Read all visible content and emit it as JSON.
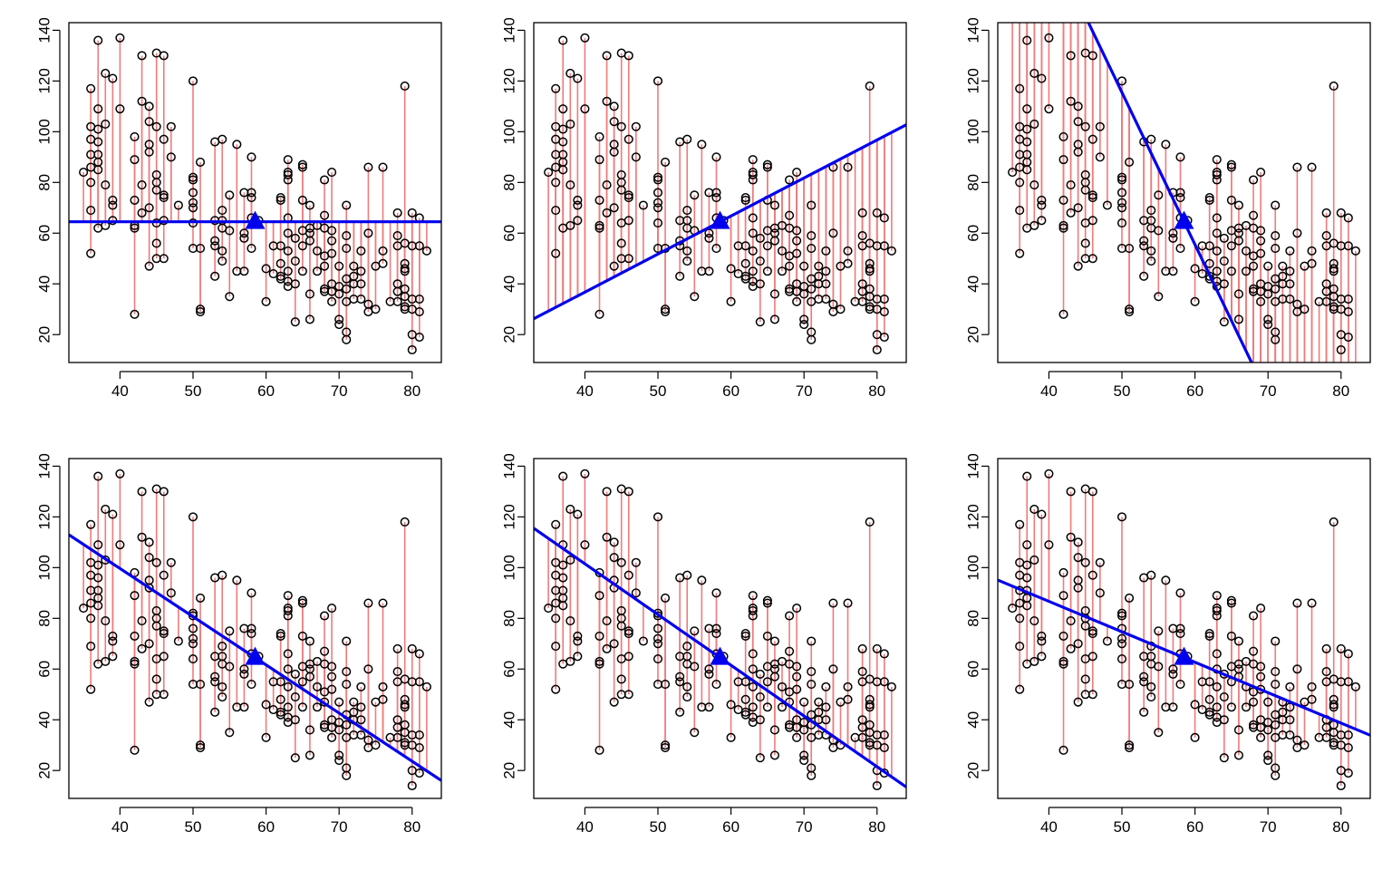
{
  "chart_data": {
    "type": "scatter",
    "layout": "2 rows x 3 columns of panels",
    "shared_axes": {
      "xlim": [
        33,
        84
      ],
      "ylim": [
        9,
        143
      ],
      "x_ticks": [
        40,
        50,
        60,
        70,
        80
      ],
      "y_ticks": [
        20,
        40,
        60,
        80,
        100,
        120,
        140
      ],
      "xlabel": "",
      "ylabel": "",
      "grid": false,
      "legend": "none"
    },
    "colors": {
      "points": "#000000",
      "residuals": "#f07b7b",
      "fit_line": "#0000ee",
      "mean_marker": "#0000ee"
    },
    "mean_point": {
      "x": 58.5,
      "y": 64.5
    },
    "points": [
      [
        35,
        84
      ],
      [
        36,
        117
      ],
      [
        36,
        52
      ],
      [
        36,
        69
      ],
      [
        36,
        80
      ],
      [
        36,
        86
      ],
      [
        36,
        91
      ],
      [
        36,
        97
      ],
      [
        36,
        102
      ],
      [
        37,
        136
      ],
      [
        37,
        62
      ],
      [
        37,
        85
      ],
      [
        37,
        88
      ],
      [
        37,
        91
      ],
      [
        37,
        96
      ],
      [
        37,
        101
      ],
      [
        37,
        109
      ],
      [
        38,
        123
      ],
      [
        38,
        103
      ],
      [
        38,
        79
      ],
      [
        38,
        63
      ],
      [
        39,
        121
      ],
      [
        39,
        73
      ],
      [
        39,
        71
      ],
      [
        39,
        65
      ],
      [
        40,
        137
      ],
      [
        40,
        109
      ],
      [
        42,
        98
      ],
      [
        42,
        89
      ],
      [
        42,
        73
      ],
      [
        42,
        63
      ],
      [
        42,
        62
      ],
      [
        42,
        28
      ],
      [
        43,
        130
      ],
      [
        43,
        112
      ],
      [
        43,
        79
      ],
      [
        43,
        68
      ],
      [
        44,
        110
      ],
      [
        44,
        104
      ],
      [
        44,
        95
      ],
      [
        44,
        92
      ],
      [
        44,
        70
      ],
      [
        44,
        47
      ],
      [
        45,
        131
      ],
      [
        45,
        102
      ],
      [
        45,
        83
      ],
      [
        45,
        80
      ],
      [
        45,
        77
      ],
      [
        45,
        64
      ],
      [
        45,
        56
      ],
      [
        45,
        50
      ],
      [
        46,
        130
      ],
      [
        46,
        97
      ],
      [
        46,
        75
      ],
      [
        46,
        74
      ],
      [
        46,
        65
      ],
      [
        46,
        50
      ],
      [
        47,
        102
      ],
      [
        47,
        90
      ],
      [
        48,
        71
      ],
      [
        50,
        120
      ],
      [
        50,
        82
      ],
      [
        50,
        81
      ],
      [
        50,
        76
      ],
      [
        50,
        72
      ],
      [
        50,
        70
      ],
      [
        50,
        64
      ],
      [
        50,
        54
      ],
      [
        51,
        88
      ],
      [
        51,
        54
      ],
      [
        51,
        30
      ],
      [
        51,
        29
      ],
      [
        53,
        96
      ],
      [
        53,
        65
      ],
      [
        53,
        57
      ],
      [
        53,
        55
      ],
      [
        53,
        43
      ],
      [
        54,
        97
      ],
      [
        54,
        69
      ],
      [
        54,
        65
      ],
      [
        54,
        62
      ],
      [
        54,
        53
      ],
      [
        54,
        49
      ],
      [
        55,
        75
      ],
      [
        55,
        61
      ],
      [
        55,
        35
      ],
      [
        56,
        95
      ],
      [
        56,
        45
      ],
      [
        57,
        76
      ],
      [
        57,
        60
      ],
      [
        57,
        58
      ],
      [
        57,
        45
      ],
      [
        58,
        90
      ],
      [
        58,
        76
      ],
      [
        58,
        74
      ],
      [
        58,
        66
      ],
      [
        58,
        54
      ],
      [
        59,
        65
      ],
      [
        60,
        46
      ],
      [
        60,
        33
      ],
      [
        61,
        55
      ],
      [
        61,
        44
      ],
      [
        62,
        74
      ],
      [
        62,
        73
      ],
      [
        62,
        55
      ],
      [
        62,
        48
      ],
      [
        62,
        43
      ],
      [
        62,
        42
      ],
      [
        63,
        89
      ],
      [
        63,
        84
      ],
      [
        63,
        83
      ],
      [
        63,
        81
      ],
      [
        63,
        66
      ],
      [
        63,
        60
      ],
      [
        63,
        53
      ],
      [
        63,
        45
      ],
      [
        63,
        41
      ],
      [
        63,
        39
      ],
      [
        64,
        58
      ],
      [
        64,
        49
      ],
      [
        64,
        40
      ],
      [
        64,
        25
      ],
      [
        65,
        87
      ],
      [
        65,
        86
      ],
      [
        65,
        73
      ],
      [
        65,
        61
      ],
      [
        65,
        55
      ],
      [
        65,
        45
      ],
      [
        66,
        71
      ],
      [
        66,
        62
      ],
      [
        66,
        60
      ],
      [
        66,
        57
      ],
      [
        66,
        36
      ],
      [
        66,
        26
      ],
      [
        67,
        63
      ],
      [
        67,
        53
      ],
      [
        67,
        45
      ],
      [
        68,
        81
      ],
      [
        68,
        67
      ],
      [
        68,
        62
      ],
      [
        68,
        51
      ],
      [
        68,
        47
      ],
      [
        68,
        38
      ],
      [
        68,
        37
      ],
      [
        69,
        84
      ],
      [
        69,
        61
      ],
      [
        69,
        57
      ],
      [
        69,
        52
      ],
      [
        69,
        40
      ],
      [
        69,
        37
      ],
      [
        69,
        33
      ],
      [
        70,
        47
      ],
      [
        70,
        39
      ],
      [
        70,
        36
      ],
      [
        70,
        26
      ],
      [
        70,
        24
      ],
      [
        71,
        71
      ],
      [
        71,
        59
      ],
      [
        71,
        54
      ],
      [
        71,
        42
      ],
      [
        71,
        38
      ],
      [
        71,
        33
      ],
      [
        71,
        21
      ],
      [
        71,
        18
      ],
      [
        72,
        47
      ],
      [
        72,
        43
      ],
      [
        72,
        40
      ],
      [
        72,
        34
      ],
      [
        73,
        53
      ],
      [
        73,
        45
      ],
      [
        73,
        40
      ],
      [
        73,
        34
      ],
      [
        74,
        86
      ],
      [
        74,
        60
      ],
      [
        74,
        32
      ],
      [
        74,
        29
      ],
      [
        75,
        47
      ],
      [
        75,
        30
      ],
      [
        76,
        86
      ],
      [
        76,
        53
      ],
      [
        76,
        48
      ],
      [
        77,
        33
      ],
      [
        78,
        68
      ],
      [
        78,
        59
      ],
      [
        78,
        55
      ],
      [
        78,
        40
      ],
      [
        78,
        37
      ],
      [
        78,
        33
      ],
      [
        79,
        118
      ],
      [
        79,
        56
      ],
      [
        79,
        48
      ],
      [
        79,
        46
      ],
      [
        79,
        45
      ],
      [
        79,
        38
      ],
      [
        79,
        35
      ],
      [
        79,
        31
      ],
      [
        79,
        30
      ],
      [
        80,
        68
      ],
      [
        80,
        55
      ],
      [
        80,
        34
      ],
      [
        80,
        30
      ],
      [
        80,
        20
      ],
      [
        80,
        14
      ],
      [
        81,
        66
      ],
      [
        81,
        55
      ],
      [
        81,
        34
      ],
      [
        81,
        29
      ],
      [
        81,
        19
      ],
      [
        82,
        53
      ]
    ],
    "panels": [
      {
        "row": 1,
        "col": 1,
        "line": {
          "slope": 0.0,
          "intercept": 64.5
        }
      },
      {
        "row": 1,
        "col": 2,
        "line": {
          "slope": 1.5,
          "intercept": -23.25
        }
      },
      {
        "row": 1,
        "col": 3,
        "line": {
          "slope": -6.0,
          "intercept": 415.5
        }
      },
      {
        "row": 2,
        "col": 1,
        "line": {
          "slope": -1.9,
          "intercept": 175.65
        }
      },
      {
        "row": 2,
        "col": 2,
        "line": {
          "slope": -2.0,
          "intercept": 181.5
        }
      },
      {
        "row": 2,
        "col": 3,
        "line": {
          "slope": -1.2,
          "intercept": 134.7
        }
      }
    ]
  }
}
